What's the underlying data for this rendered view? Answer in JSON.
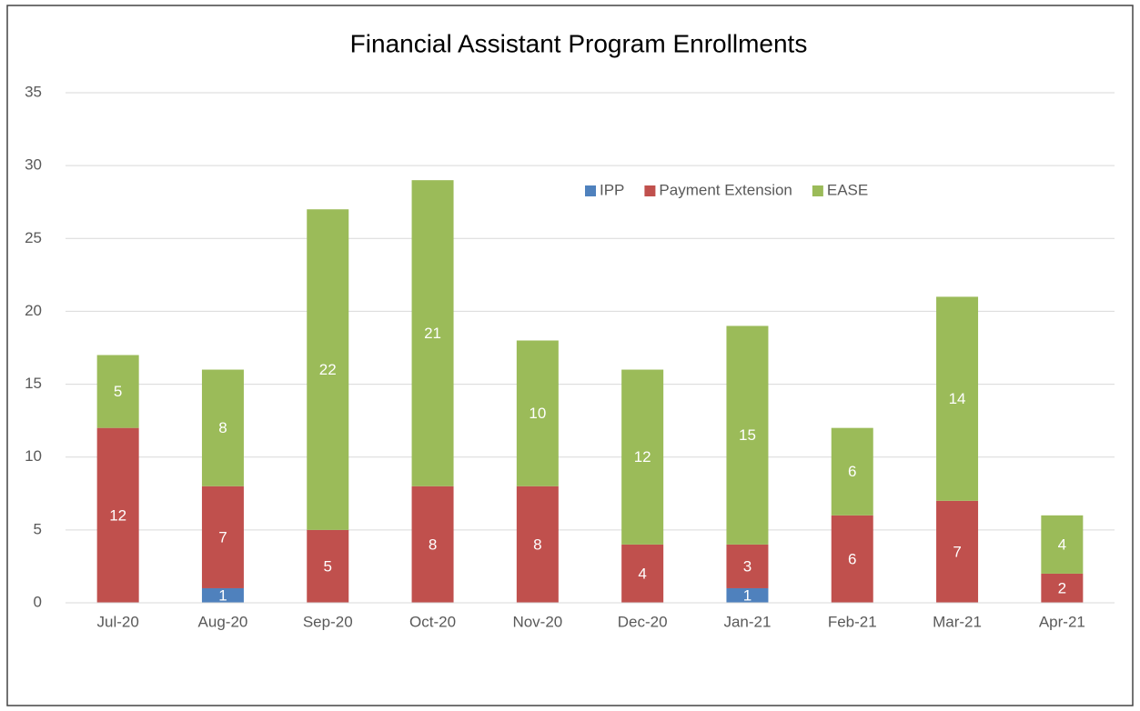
{
  "chart_data": {
    "type": "stacked_bar",
    "title": "Financial Assistant Program Enrollments",
    "categories": [
      "Jul-20",
      "Aug-20",
      "Sep-20",
      "Oct-20",
      "Nov-20",
      "Dec-20",
      "Jan-21",
      "Feb-21",
      "Mar-21",
      "Apr-21"
    ],
    "series": [
      {
        "name": "IPP",
        "color": "#4f81bd",
        "values": [
          0,
          1,
          0,
          0,
          0,
          0,
          1,
          0,
          0,
          0
        ]
      },
      {
        "name": "Payment Extension",
        "color": "#c0504d",
        "values": [
          12,
          7,
          5,
          8,
          8,
          4,
          3,
          6,
          7,
          2
        ]
      },
      {
        "name": "EASE",
        "color": "#9bbb59",
        "values": [
          5,
          8,
          22,
          21,
          10,
          12,
          15,
          6,
          14,
          4
        ]
      }
    ],
    "ylim": [
      0,
      35
    ],
    "yticks": [
      0,
      5,
      10,
      15,
      20,
      25,
      30,
      35
    ],
    "grid": true,
    "legend": "top-right"
  }
}
